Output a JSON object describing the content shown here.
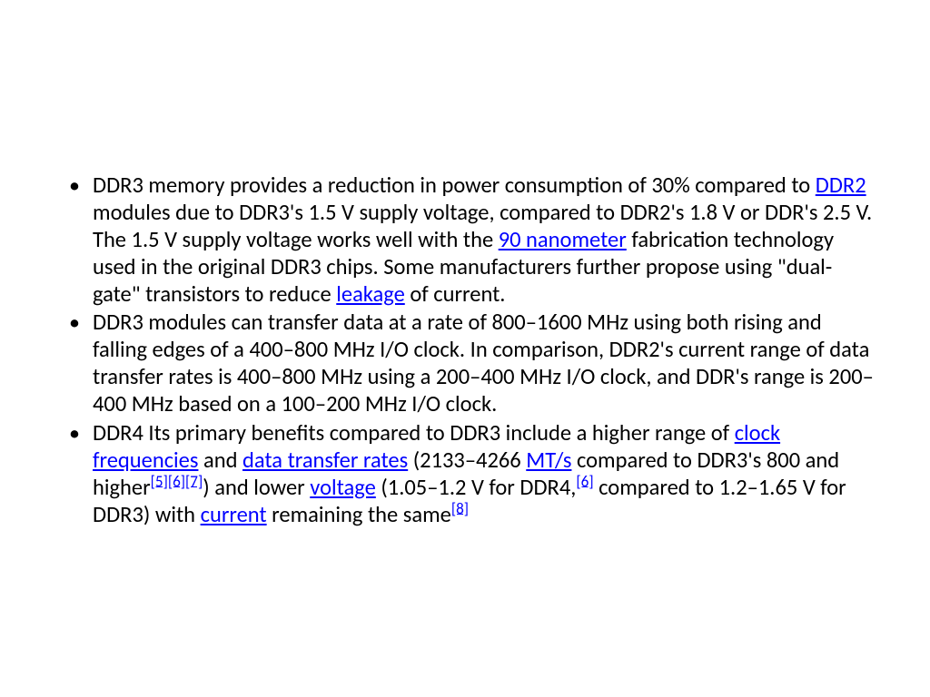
{
  "bullets": [
    {
      "segments": [
        {
          "t": "DDR3 memory provides a reduction in power consumption of 30% compared to "
        },
        {
          "t": "DDR2",
          "link": true
        },
        {
          "t": " modules due to DDR3's 1.5 V supply voltage, compared to DDR2's 1.8 V or DDR's 2.5 V. The 1.5 V supply voltage works well with the "
        },
        {
          "t": "90 nanometer",
          "link": true
        },
        {
          "t": " fabrication technology used in the original DDR3 chips. Some manufacturers further propose using \"dual-gate\" transistors to reduce "
        },
        {
          "t": "leakage",
          "link": true
        },
        {
          "t": " of current."
        }
      ]
    },
    {
      "segments": [
        {
          "t": "DDR3 modules can transfer data at a rate of 800–1600 MHz using both rising and falling edges of a 400–800 MHz I/O clock. In comparison, DDR2's current range of data transfer rates is 400–800 MHz using a 200–400 MHz I/O clock, and DDR's range is 200–400 MHz based on a 100–200 MHz I/O clock."
        }
      ]
    },
    {
      "segments": [
        {
          "t": "DDR4 Its primary benefits compared to DDR3 include a higher range of "
        },
        {
          "t": "clock frequencies",
          "link": true
        },
        {
          "t": " and "
        },
        {
          "t": "data transfer rates",
          "link": true
        },
        {
          "t": " (2133–4266 "
        },
        {
          "t": "MT/s",
          "link": true
        },
        {
          "t": " compared to DDR3's 800 and higher"
        },
        {
          "t": "[5]",
          "sup": true
        },
        {
          "t": "[6]",
          "sup": true
        },
        {
          "t": "[7]",
          "sup": true
        },
        {
          "t": ") and lower "
        },
        {
          "t": "voltage",
          "link": true
        },
        {
          "t": " (1.05–1.2 V for DDR4,"
        },
        {
          "t": "[6]",
          "sup": true
        },
        {
          "t": " compared to 1.2–1.65 V for DDR3) with "
        },
        {
          "t": "current",
          "link": true
        },
        {
          "t": " remaining the same"
        },
        {
          "t": "[8]",
          "sup": true
        }
      ]
    }
  ]
}
